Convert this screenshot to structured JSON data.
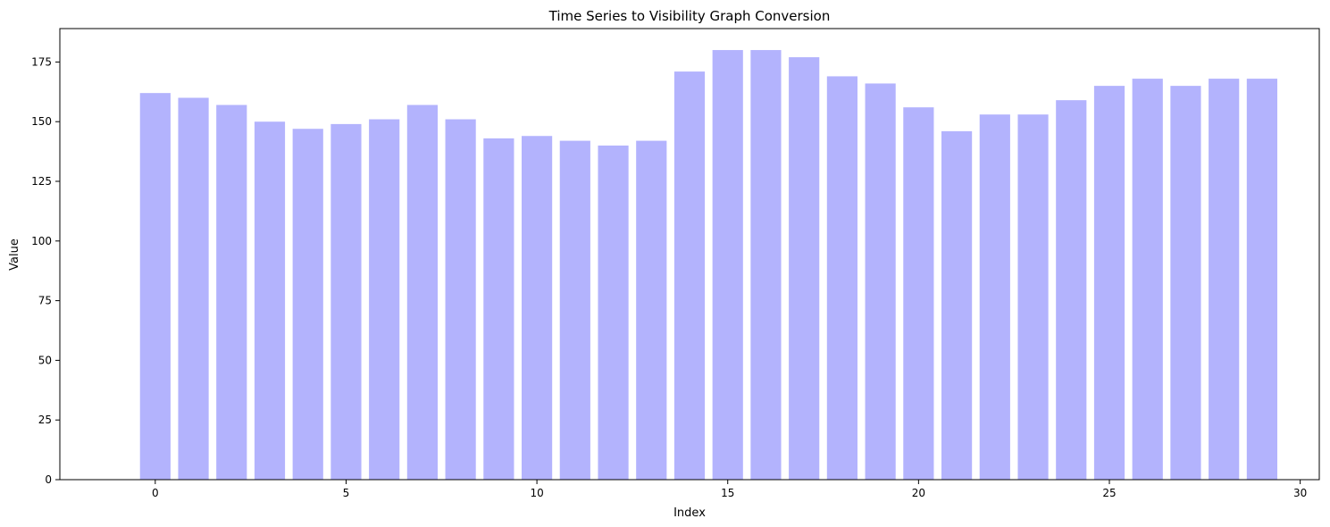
{
  "chart_data": {
    "type": "bar",
    "title": "Time Series to Visibility Graph Conversion",
    "xlabel": "Index",
    "ylabel": "Value",
    "x": [
      0,
      1,
      2,
      3,
      4,
      5,
      6,
      7,
      8,
      9,
      10,
      11,
      12,
      13,
      14,
      15,
      16,
      17,
      18,
      19,
      20,
      21,
      22,
      23,
      24,
      25,
      26,
      27,
      28,
      29
    ],
    "values": [
      162,
      160,
      157,
      150,
      147,
      149,
      151,
      157,
      151,
      143,
      144,
      142,
      140,
      142,
      171,
      180,
      180,
      177,
      169,
      166,
      156,
      146,
      153,
      153,
      159,
      165,
      168,
      165,
      168,
      168
    ],
    "xlim": [
      -2.5,
      30.5
    ],
    "ylim": [
      0,
      189
    ],
    "xticks": [
      0,
      5,
      10,
      15,
      20,
      25,
      30
    ],
    "yticks": [
      0,
      25,
      50,
      75,
      100,
      125,
      150,
      175
    ],
    "bar_color": "#b3b3fd",
    "grid": false,
    "legend": "none"
  }
}
